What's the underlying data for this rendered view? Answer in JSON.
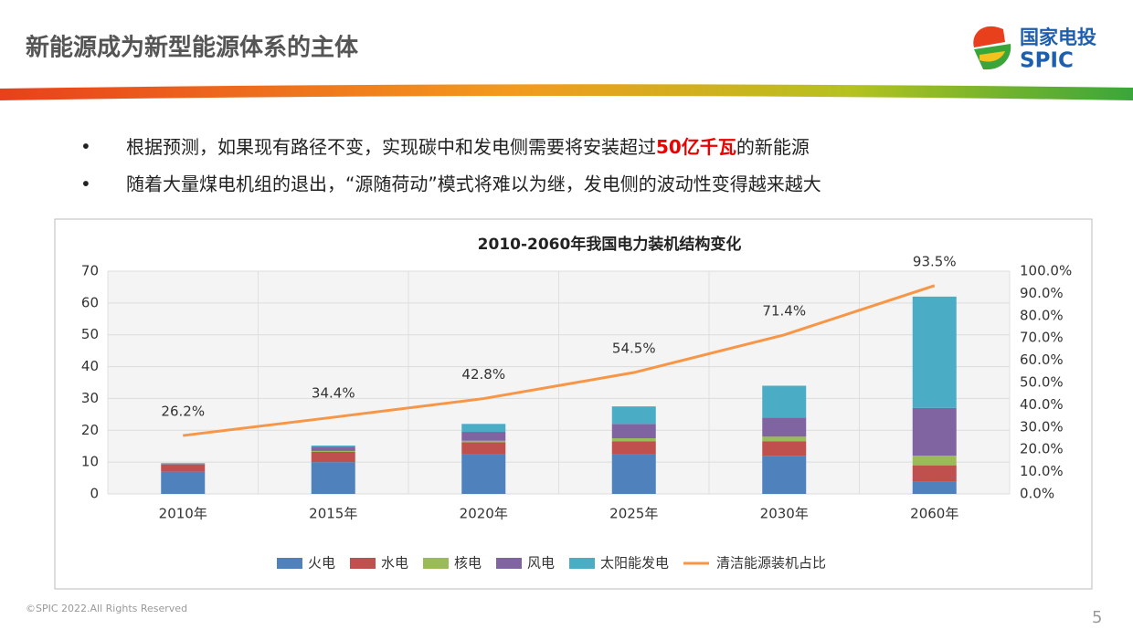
{
  "header": {
    "title": "新能源成为新型能源体系的主体"
  },
  "logo": {
    "name": "国家电投",
    "abbr": "SPIC"
  },
  "bullets": [
    {
      "before": "根据预测，如果现有路径不变，实现碳中和发电侧需要将安装超过",
      "highlight": "50亿千瓦",
      "after": "的新能源"
    },
    {
      "before": "随着大量煤电机组的退出，“源随荷动”模式将难以为继，发电侧的波动性变得越来越大"
    }
  ],
  "footer": {
    "copyright": "©SPIC 2022.All Rights Reserved",
    "page": "5"
  },
  "chart_data": {
    "type": "bar",
    "stacked": true,
    "title": "2010-2060年我国电力装机结构变化",
    "categories": [
      "2010年",
      "2015年",
      "2020年",
      "2025年",
      "2030年",
      "2060年"
    ],
    "series": [
      {
        "name": "火电",
        "color": "#4f81bd",
        "values": [
          7,
          10,
          12.5,
          12.5,
          12,
          4
        ]
      },
      {
        "name": "水电",
        "color": "#c0504d",
        "values": [
          2.2,
          3.2,
          3.7,
          4,
          4.5,
          5
        ]
      },
      {
        "name": "核电",
        "color": "#9bbb59",
        "values": [
          0.1,
          0.3,
          0.5,
          1,
          1.5,
          3
        ]
      },
      {
        "name": "风电",
        "color": "#8064a2",
        "values": [
          0.3,
          1.3,
          2.8,
          4.5,
          6,
          15
        ]
      },
      {
        "name": "太阳能发电",
        "color": "#4bacc6",
        "values": [
          0.05,
          0.4,
          2.5,
          5.5,
          10,
          35
        ]
      },
      {
        "name": "清洁能源装机占比",
        "type": "line",
        "axis": "y2",
        "color": "#f79646",
        "values": [
          26.2,
          34.4,
          42.8,
          54.5,
          71.4,
          93.5
        ],
        "value_labels": [
          "26.2%",
          "34.4%",
          "42.8%",
          "54.5%",
          "71.4%",
          "93.5%"
        ]
      }
    ],
    "ylim": [
      0,
      70
    ],
    "yticks": [
      0,
      10,
      20,
      30,
      40,
      50,
      60,
      70
    ],
    "y2lim": [
      0,
      100
    ],
    "y2ticks": [
      {
        "value": 0,
        "label": "0.0%"
      },
      {
        "value": 10,
        "label": "10.0%"
      },
      {
        "value": 20,
        "label": "20.0%"
      },
      {
        "value": 30,
        "label": "30.0%"
      },
      {
        "value": 40,
        "label": "40.0%"
      },
      {
        "value": 50,
        "label": "50.0%"
      },
      {
        "value": 60,
        "label": "60.0%"
      },
      {
        "value": 70,
        "label": "70.0%"
      },
      {
        "value": 80,
        "label": "80.0%"
      },
      {
        "value": 90,
        "label": "90.0%"
      },
      {
        "value": 100,
        "label": "100.0%"
      }
    ],
    "grid": true,
    "legend": "bottom"
  }
}
